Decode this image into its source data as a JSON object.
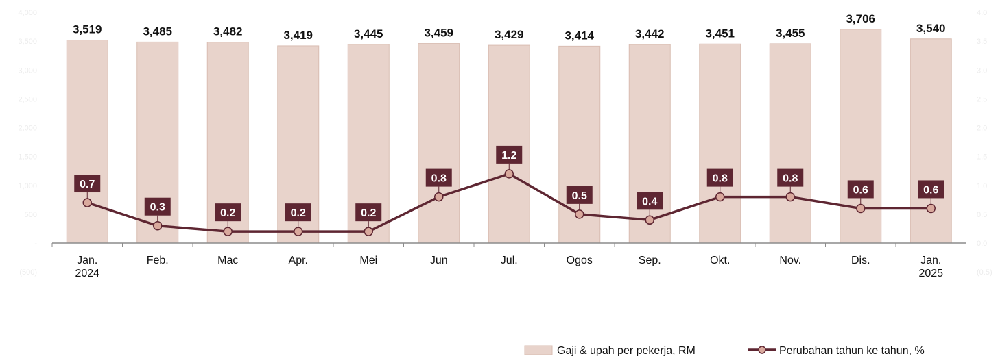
{
  "chart_data": {
    "type": "bar",
    "categories": [
      [
        "Jan.",
        "2024"
      ],
      [
        "Feb."
      ],
      [
        "Mac"
      ],
      [
        "Apr."
      ],
      [
        "Mei"
      ],
      [
        "Jun"
      ],
      [
        "Jul."
      ],
      [
        "Ogos"
      ],
      [
        "Sep."
      ],
      [
        "Okt."
      ],
      [
        "Nov."
      ],
      [
        "Dis."
      ],
      [
        "Jan.",
        "2025"
      ]
    ],
    "series": [
      {
        "name": "Gaji & upah per pekerja, RM",
        "type": "bar",
        "axis": "left",
        "values": [
          3519,
          3485,
          3482,
          3419,
          3445,
          3459,
          3429,
          3414,
          3442,
          3451,
          3455,
          3706,
          3540
        ],
        "labels": [
          "3,519",
          "3,485",
          "3,482",
          "3,419",
          "3,445",
          "3,459",
          "3,429",
          "3,414",
          "3,442",
          "3,451",
          "3,455",
          "3,706",
          "3,540"
        ]
      },
      {
        "name": "Perubahan tahun ke tahun, %",
        "type": "line",
        "axis": "right",
        "values": [
          0.7,
          0.3,
          0.2,
          0.2,
          0.2,
          0.8,
          1.2,
          0.5,
          0.4,
          0.8,
          0.8,
          0.6,
          0.6
        ],
        "labels": [
          "0.7",
          "0.3",
          "0.2",
          "0.2",
          "0.2",
          "0.8",
          "1.2",
          "0.5",
          "0.4",
          "0.8",
          "0.8",
          "0.6",
          "0.6"
        ]
      }
    ],
    "left_axis": {
      "ylim": [
        -500,
        4000
      ],
      "ticks": [
        -500,
        0,
        500,
        1000,
        1500,
        2000,
        2500,
        3000,
        3500,
        4000
      ],
      "tick_labels": [
        "(500)",
        "-",
        "500",
        "1,000",
        "1,500",
        "2,000",
        "2,500",
        "3,000",
        "3,500",
        "4,000"
      ]
    },
    "right_axis": {
      "ylim": [
        -0.5,
        4.0
      ],
      "ticks": [
        -0.5,
        0,
        0.5,
        1.0,
        1.5,
        2.0,
        2.5,
        3.0,
        3.5,
        4.0
      ],
      "tick_labels": [
        "(0.5)",
        "0.0",
        "0.5",
        "1.0",
        "1.5",
        "2.0",
        "2.5",
        "3.0",
        "3.5",
        "4.0"
      ]
    },
    "legend_position": "bottom-right",
    "grid": false,
    "colors": {
      "bar": "#e8d3cb",
      "bar_edge": "#d9bdb2",
      "line": "#5e2632",
      "marker_fill": "#d9a99d",
      "label_box": "#5e2632"
    }
  }
}
